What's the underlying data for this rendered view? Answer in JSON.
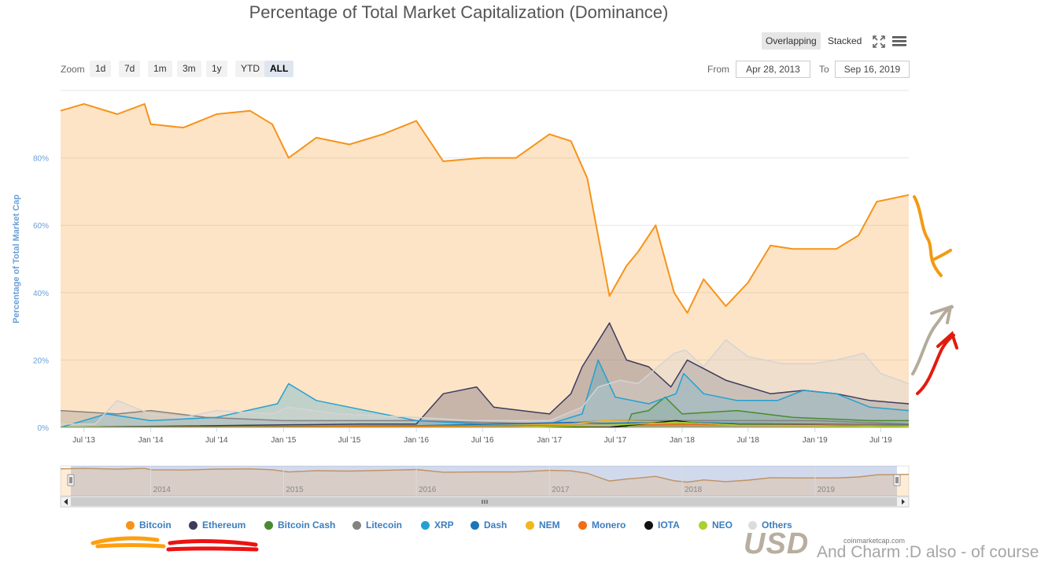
{
  "header": {
    "title": "Percentage of Total Market Capitalization (Dominance)"
  },
  "toolbar": {
    "zoom_label": "Zoom",
    "zoom_buttons": [
      "1d",
      "7d",
      "1m",
      "3m",
      "1y",
      "YTD",
      "ALL"
    ],
    "zoom_active": "ALL",
    "from_label": "From",
    "from_value": "Apr 28, 2013",
    "to_label": "To",
    "to_value": "Sep 16, 2019",
    "modes": [
      "Overlapping",
      "Stacked"
    ],
    "mode_active": "Overlapping",
    "fullscreen_icon": "expand-icon",
    "menu_icon": "hamburger-menu-icon"
  },
  "chart_data": {
    "type": "area",
    "title": "Percentage of Total Market Capitalization (Dominance)",
    "ylabel": "Percentage of Total Market Cap",
    "ylim": [
      0,
      100
    ],
    "y_ticks": [
      "0%",
      "20%",
      "40%",
      "60%",
      "80%"
    ],
    "y_tick_values": [
      0,
      20,
      40,
      60,
      80
    ],
    "xlim": [
      "2013-04-28",
      "2019-09-16"
    ],
    "x_ticks": [
      "Jul '13",
      "Jan '14",
      "Jul '14",
      "Jan '15",
      "Jul '15",
      "Jan '16",
      "Jul '16",
      "Jan '17",
      "Jul '17",
      "Jan '18",
      "Jul '18",
      "Jan '19",
      "Jul '19"
    ],
    "x_tick_dates": [
      "2013-07-01",
      "2014-01-01",
      "2014-07-01",
      "2015-01-01",
      "2015-07-01",
      "2016-01-01",
      "2016-07-01",
      "2017-01-01",
      "2017-07-01",
      "2018-01-01",
      "2018-07-01",
      "2019-01-01",
      "2019-07-01"
    ],
    "navigator_ticks": [
      "2014",
      "2015",
      "2016",
      "2017",
      "2018",
      "2019"
    ],
    "navigator_tick_dates": [
      "2014-01-01",
      "2015-01-01",
      "2016-01-01",
      "2017-01-01",
      "2018-01-01",
      "2019-01-01"
    ],
    "grid": true,
    "legend": "bottom",
    "series": [
      {
        "name": "Bitcoin",
        "color": "#f7931a",
        "x": [
          "2013-04-28",
          "2013-07-01",
          "2013-10-01",
          "2013-12-15",
          "2014-01-01",
          "2014-04-01",
          "2014-07-01",
          "2014-10-01",
          "2014-12-01",
          "2015-01-15",
          "2015-04-01",
          "2015-07-01",
          "2015-10-01",
          "2016-01-01",
          "2016-03-15",
          "2016-07-01",
          "2016-10-01",
          "2017-01-01",
          "2017-03-01",
          "2017-04-15",
          "2017-06-15",
          "2017-08-01",
          "2017-09-01",
          "2017-10-20",
          "2017-12-10",
          "2018-01-15",
          "2018-03-01",
          "2018-05-01",
          "2018-07-01",
          "2018-09-01",
          "2018-11-01",
          "2019-01-01",
          "2019-03-01",
          "2019-05-01",
          "2019-06-20",
          "2019-09-16"
        ],
        "values": [
          94,
          96,
          93,
          96,
          90,
          89,
          93,
          94,
          90,
          80,
          86,
          84,
          87,
          91,
          79,
          80,
          80,
          87,
          85,
          74,
          39,
          48,
          52,
          60,
          40,
          34,
          44,
          36,
          43,
          54,
          53,
          53,
          53,
          57,
          67,
          69
        ]
      },
      {
        "name": "Ethereum",
        "color": "#3c3c5e",
        "x": [
          "2013-04-28",
          "2015-08-01",
          "2016-01-01",
          "2016-03-15",
          "2016-06-15",
          "2016-08-01",
          "2017-01-01",
          "2017-03-01",
          "2017-04-01",
          "2017-06-15",
          "2017-08-01",
          "2017-10-01",
          "2017-12-01",
          "2018-01-15",
          "2018-05-01",
          "2018-09-01",
          "2018-12-01",
          "2019-03-01",
          "2019-06-01",
          "2019-09-16"
        ],
        "values": [
          0,
          1,
          1,
          10,
          12,
          6,
          4,
          10,
          18,
          31,
          20,
          18,
          12,
          20,
          14,
          10,
          11,
          10,
          8,
          7
        ]
      },
      {
        "name": "Bitcoin Cash",
        "color": "#4a8a2f",
        "x": [
          "2013-04-28",
          "2017-07-31",
          "2017-08-15",
          "2017-10-01",
          "2017-11-15",
          "2018-01-01",
          "2018-06-01",
          "2018-11-01",
          "2019-06-01",
          "2019-09-16"
        ],
        "values": [
          0,
          0,
          4,
          5,
          9,
          4,
          5,
          3,
          2,
          2
        ]
      },
      {
        "name": "Litecoin",
        "color": "#838383",
        "x": [
          "2013-04-28",
          "2013-10-01",
          "2014-01-01",
          "2014-06-01",
          "2015-01-01",
          "2016-01-01",
          "2017-01-01",
          "2017-06-01",
          "2018-01-01",
          "2019-01-01",
          "2019-09-16"
        ],
        "values": [
          5,
          4,
          5,
          3,
          2,
          2,
          1,
          2,
          2,
          2,
          1
        ]
      },
      {
        "name": "XRP",
        "color": "#23a1d1",
        "x": [
          "2013-04-28",
          "2013-09-01",
          "2014-01-01",
          "2014-07-01",
          "2014-12-15",
          "2015-01-15",
          "2015-04-01",
          "2015-07-01",
          "2016-01-01",
          "2016-07-01",
          "2017-01-01",
          "2017-04-01",
          "2017-05-15",
          "2017-07-01",
          "2017-10-01",
          "2017-12-15",
          "2018-01-05",
          "2018-03-01",
          "2018-06-01",
          "2018-09-20",
          "2018-12-01",
          "2019-03-01",
          "2019-06-01",
          "2019-09-16"
        ],
        "values": [
          0,
          4,
          2,
          3,
          7,
          13,
          8,
          6,
          2,
          1,
          1,
          4,
          20,
          9,
          7,
          10,
          16,
          10,
          8,
          8,
          11,
          10,
          6,
          5
        ]
      },
      {
        "name": "Dash",
        "color": "#1b75bb",
        "x": [
          "2013-04-28",
          "2015-01-01",
          "2016-01-01",
          "2017-03-01",
          "2017-06-01",
          "2018-01-01",
          "2018-06-01",
          "2019-09-16"
        ],
        "values": [
          0,
          0.3,
          0.5,
          1.5,
          1.2,
          1.6,
          1.1,
          0.8
        ]
      },
      {
        "name": "NEM",
        "color": "#f3b61f",
        "x": [
          "2013-04-28",
          "2016-01-01",
          "2017-03-01",
          "2017-06-01",
          "2018-01-01",
          "2018-06-01",
          "2019-09-16"
        ],
        "values": [
          0,
          0.1,
          1,
          2,
          1.5,
          0.6,
          0.2
        ]
      },
      {
        "name": "Monero",
        "color": "#ef6c19",
        "x": [
          "2013-04-28",
          "2015-01-01",
          "2016-06-01",
          "2017-06-01",
          "2018-01-01",
          "2019-09-16"
        ],
        "values": [
          0,
          0.2,
          0.5,
          0.6,
          0.9,
          0.6
        ]
      },
      {
        "name": "IOTA",
        "color": "#111111",
        "x": [
          "2013-04-28",
          "2017-06-13",
          "2017-12-15",
          "2018-02-01",
          "2018-06-01",
          "2019-09-16"
        ],
        "values": [
          0,
          0,
          2,
          1.3,
          0.8,
          0.3
        ]
      },
      {
        "name": "NEO",
        "color": "#a9d12d",
        "x": [
          "2013-04-28",
          "2016-10-01",
          "2017-07-01",
          "2017-10-01",
          "2018-01-01",
          "2018-06-01",
          "2019-09-16"
        ],
        "values": [
          0,
          0,
          0.7,
          1.2,
          1.5,
          0.7,
          0.3
        ]
      },
      {
        "name": "Others",
        "color": "#d4d4d4",
        "x": [
          "2013-04-28",
          "2013-08-01",
          "2013-10-01",
          "2014-01-01",
          "2014-04-01",
          "2014-07-01",
          "2014-12-01",
          "2015-01-15",
          "2015-06-01",
          "2016-01-01",
          "2016-06-01",
          "2017-01-01",
          "2017-04-01",
          "2017-05-15",
          "2017-07-15",
          "2017-09-01",
          "2017-12-10",
          "2018-01-10",
          "2018-03-01",
          "2018-05-01",
          "2018-07-01",
          "2018-10-01",
          "2019-01-01",
          "2019-03-01",
          "2019-05-15",
          "2019-07-01",
          "2019-09-16"
        ],
        "values": [
          1,
          1,
          8,
          4,
          3,
          5,
          4,
          6,
          4,
          3,
          2,
          2,
          6,
          12,
          14,
          13,
          22,
          23,
          18,
          26,
          21,
          19,
          19,
          20,
          22,
          16,
          13
        ]
      }
    ]
  },
  "footer": {
    "credit": "coinmarketcap.com",
    "usd_label": "USD",
    "note": "And Charm :D also - of course"
  }
}
